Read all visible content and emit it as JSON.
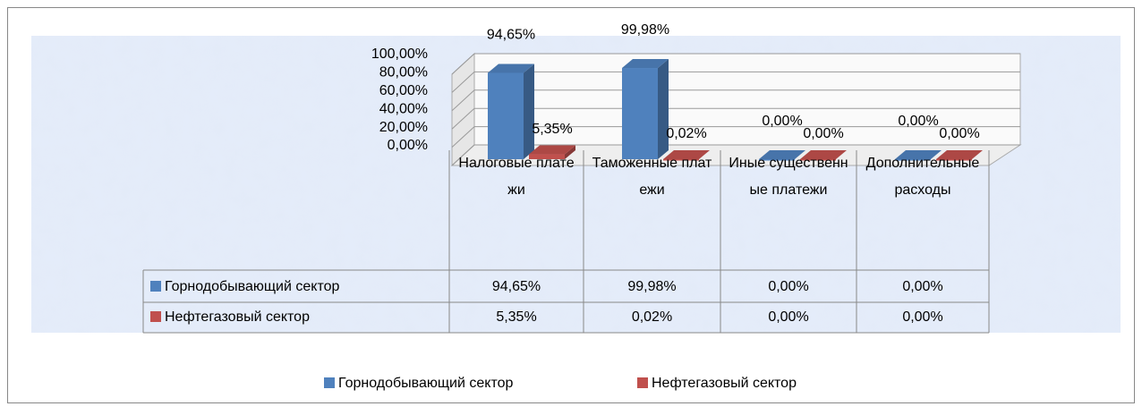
{
  "chart_data": {
    "type": "bar",
    "categories": [
      "Налоговые платежи",
      "Таможенные платежи",
      "Иные существенные платежи",
      "Дополнительные расходы"
    ],
    "series": [
      {
        "name": "Горнодобывающий сектор",
        "color": "#4f81bd",
        "values": [
          94.65,
          99.98,
          0,
          0
        ],
        "value_labels": [
          "94,65%",
          "99,98%",
          "0,00%",
          "0,00%"
        ]
      },
      {
        "name": "Нефтегазовый сектор",
        "color": "#c0504d",
        "values": [
          5.35,
          0.02,
          0,
          0
        ],
        "value_labels": [
          "5,35%",
          "0,02%",
          "0,00%",
          "0,00%"
        ]
      }
    ],
    "ylim": [
      0,
      100
    ],
    "yticks": [
      {
        "value": 0,
        "label": "0,00%"
      },
      {
        "value": 20,
        "label": "20,00%"
      },
      {
        "value": 40,
        "label": "40,00%"
      },
      {
        "value": 60,
        "label": "60,00%"
      },
      {
        "value": 80,
        "label": "80,00%"
      },
      {
        "value": 100,
        "label": "100,00%"
      }
    ],
    "grid": true,
    "legend": "bottom"
  }
}
